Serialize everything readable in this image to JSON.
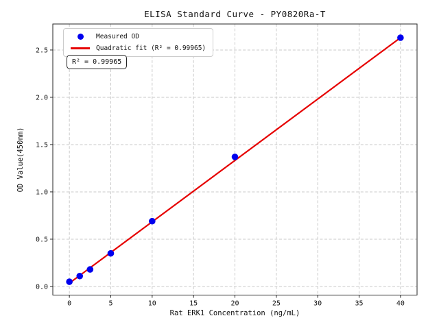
{
  "chart_data": {
    "type": "scatter",
    "title": "ELISA Standard Curve - PY0820Ra-T",
    "xlabel": "Rat ERK1 Concentration (ng/mL)",
    "ylabel": "OD Value(450nm)",
    "xlim": [
      -2,
      42
    ],
    "ylim": [
      -0.091,
      2.775
    ],
    "xticks": [
      0,
      5,
      10,
      15,
      20,
      25,
      30,
      35,
      40
    ],
    "xtick_labels": [
      "0",
      "5",
      "10",
      "15",
      "20",
      "25",
      "30",
      "35",
      "40"
    ],
    "yticks": [
      0,
      0.5,
      1.0,
      1.5,
      2.0,
      2.5
    ],
    "ytick_labels": [
      "0.0",
      "0.5",
      "1.0",
      "1.5",
      "2.0",
      "2.5"
    ],
    "grid": true,
    "grid_color": "#c9c9c9",
    "spine_color": "#262626",
    "series": [
      {
        "name": "Measured OD",
        "type": "scatter",
        "color": "#0000ee",
        "x": [
          0,
          1.25,
          2.5,
          5,
          10,
          20,
          40
        ],
        "y": [
          0.05,
          0.11,
          0.18,
          0.35,
          0.69,
          1.37,
          2.63
        ]
      },
      {
        "name": "Quadratic fit",
        "type": "line",
        "color": "#e60000",
        "x": [
          0,
          40
        ],
        "y": [
          0.035,
          2.63
        ]
      }
    ],
    "legend": {
      "position": "upper-left",
      "entries": [
        {
          "label": "Measured OD",
          "marker": "circle",
          "color": "#0000ee"
        },
        {
          "label": "Quadratic fit (R² = 0.99965)",
          "marker": "line",
          "color": "#e60000"
        }
      ]
    },
    "annotation": {
      "text": "R² = 0.99965"
    },
    "r_squared": 0.99965
  }
}
